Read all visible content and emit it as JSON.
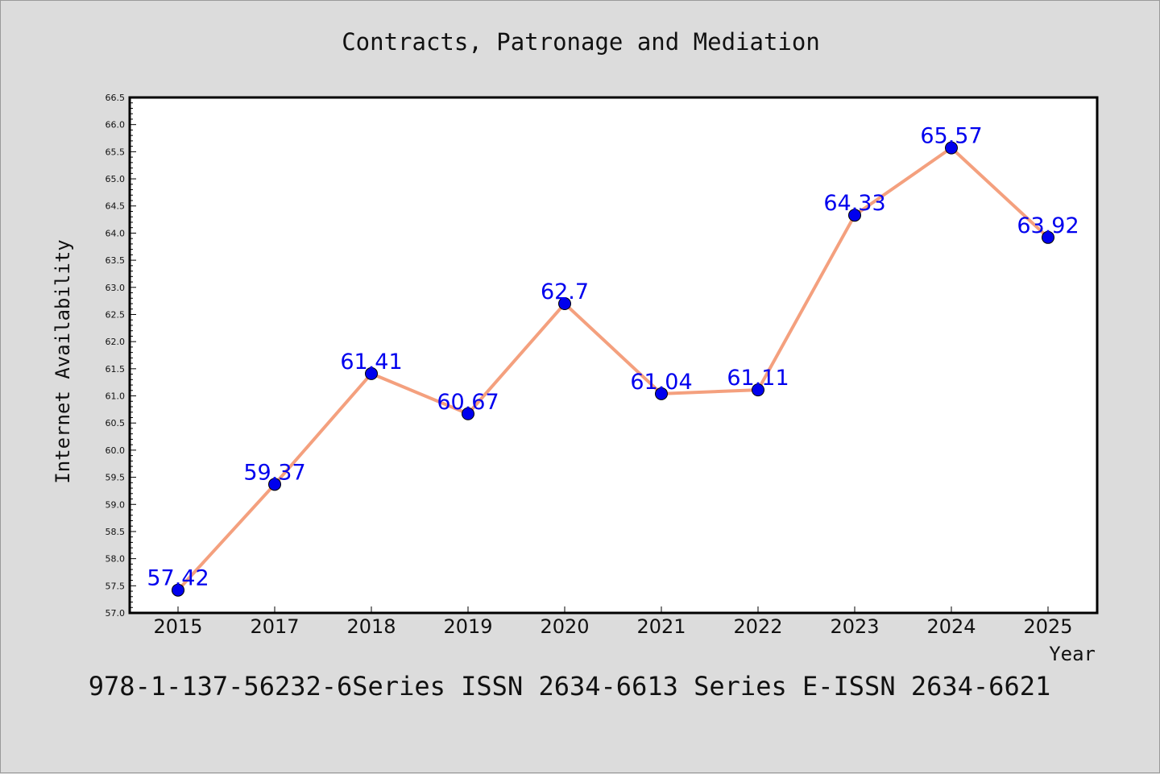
{
  "chart_data": {
    "type": "line",
    "title": "Contracts, Patronage and Mediation",
    "xlabel": "Year",
    "ylabel": "Internet Availability",
    "categories": [
      "2015",
      "2017",
      "2018",
      "2019",
      "2020",
      "2021",
      "2022",
      "2023",
      "2024",
      "2025"
    ],
    "series": [
      {
        "values": [
          57.42,
          59.37,
          61.41,
          60.67,
          62.7,
          61.04,
          61.11,
          64.33,
          65.57,
          63.92
        ],
        "labels": [
          "57.42",
          "59.37",
          "61.41",
          "60.67",
          "62.7",
          "61.04",
          "61.11",
          "64.33",
          "65.57",
          "63.92"
        ],
        "line_color": "#f4a07e",
        "marker_color": "#0000ee"
      }
    ],
    "ylim": [
      57.0,
      66.5
    ],
    "yticks": [
      "57.0",
      "57.5",
      "58.0",
      "58.5",
      "59.0",
      "59.5",
      "60.0",
      "60.5",
      "61.0",
      "61.5",
      "62.0",
      "62.5",
      "63.0",
      "63.5",
      "64.0",
      "64.5",
      "65.0",
      "65.5",
      "66.0",
      "66.5"
    ],
    "grid": false,
    "legend": "none"
  },
  "footer": "978-1-137-56232-6Series ISSN 2634-6613 Series E-ISSN 2634-6621",
  "colors": {
    "background": "#dcdcdc",
    "plot_background": "#ffffff",
    "line": "#f4a07e",
    "marker": "#0000ee",
    "label": "#0000ee"
  }
}
